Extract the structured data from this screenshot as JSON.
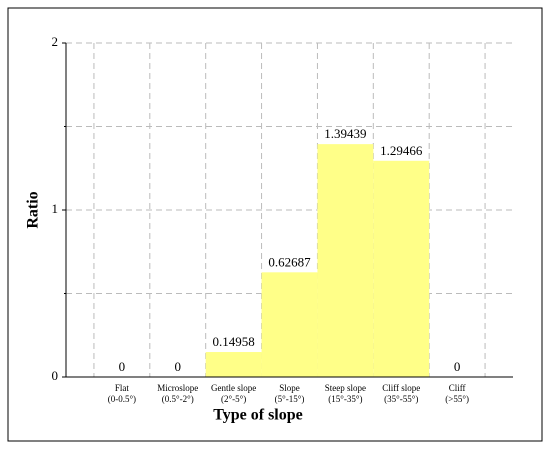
{
  "chart_data": {
    "type": "bar",
    "x_label": "Type of slope",
    "y_label": "Ratio",
    "categories": [
      [
        "Flat",
        "(0-0.5°)"
      ],
      [
        "Microslope",
        "(0.5°-2°)"
      ],
      [
        "Gentle slope",
        "(2°-5°)"
      ],
      [
        "Slope",
        "(5°-15°)"
      ],
      [
        "Steep slope",
        "(15°-35°)"
      ],
      [
        "Cliff slope",
        "(35°-55°)"
      ],
      [
        "Cliff",
        "(>55°)"
      ]
    ],
    "values": [
      0,
      0,
      0.14958,
      0.62687,
      1.39439,
      1.29466,
      0
    ],
    "color": "#ffff88",
    "ylim": [
      0,
      2
    ],
    "yticks": [
      0,
      1,
      2
    ],
    "minor_yticks": [
      0.5,
      1.5
    ],
    "grid": true
  }
}
